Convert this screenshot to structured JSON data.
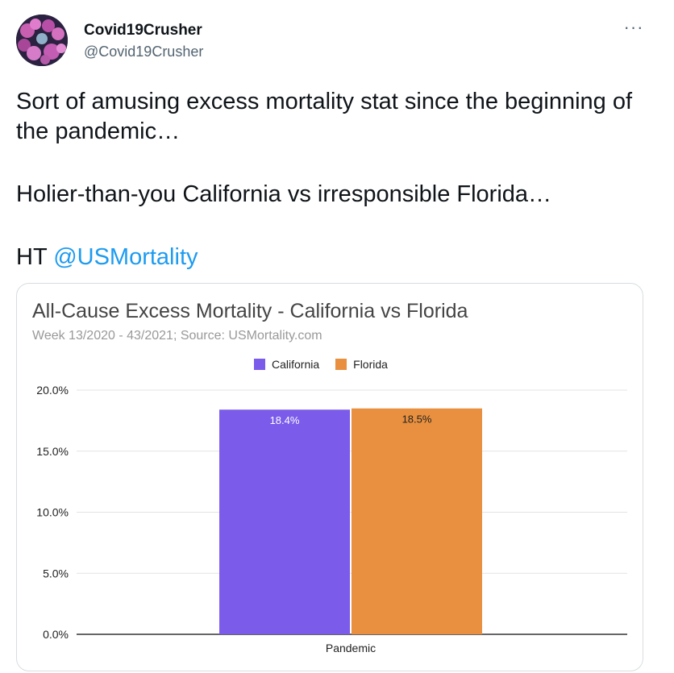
{
  "tweet": {
    "author": {
      "display_name": "Covid19Crusher",
      "handle": "@Covid19Crusher"
    },
    "more_icon": "ellipsis-icon",
    "text": {
      "line1": "Sort of amusing excess mortality stat since the beginning of the pandemic…",
      "line2": "Holier-than-you California vs irresponsible Florida…",
      "line3_prefix": "HT ",
      "mention": "@USMortality"
    }
  },
  "chart_data": {
    "type": "bar",
    "title": "All-Cause Excess Mortality - California vs Florida",
    "subtitle": "Week 13/2020 - 43/2021; Source: USMortality.com",
    "categories": [
      "Pandemic"
    ],
    "series": [
      {
        "name": "California",
        "values": [
          18.4
        ],
        "color": "#7b5bea",
        "data_label": "18.4%"
      },
      {
        "name": "Florida",
        "values": [
          18.5
        ],
        "color": "#e8903f",
        "data_label": "18.5%"
      }
    ],
    "ylim": [
      0,
      20
    ],
    "yticks": [
      "0.0%",
      "5.0%",
      "10.0%",
      "15.0%",
      "20.0%"
    ],
    "ytick_values": [
      0,
      5,
      10,
      15,
      20
    ],
    "grid": true,
    "legend_position": "top-center"
  }
}
